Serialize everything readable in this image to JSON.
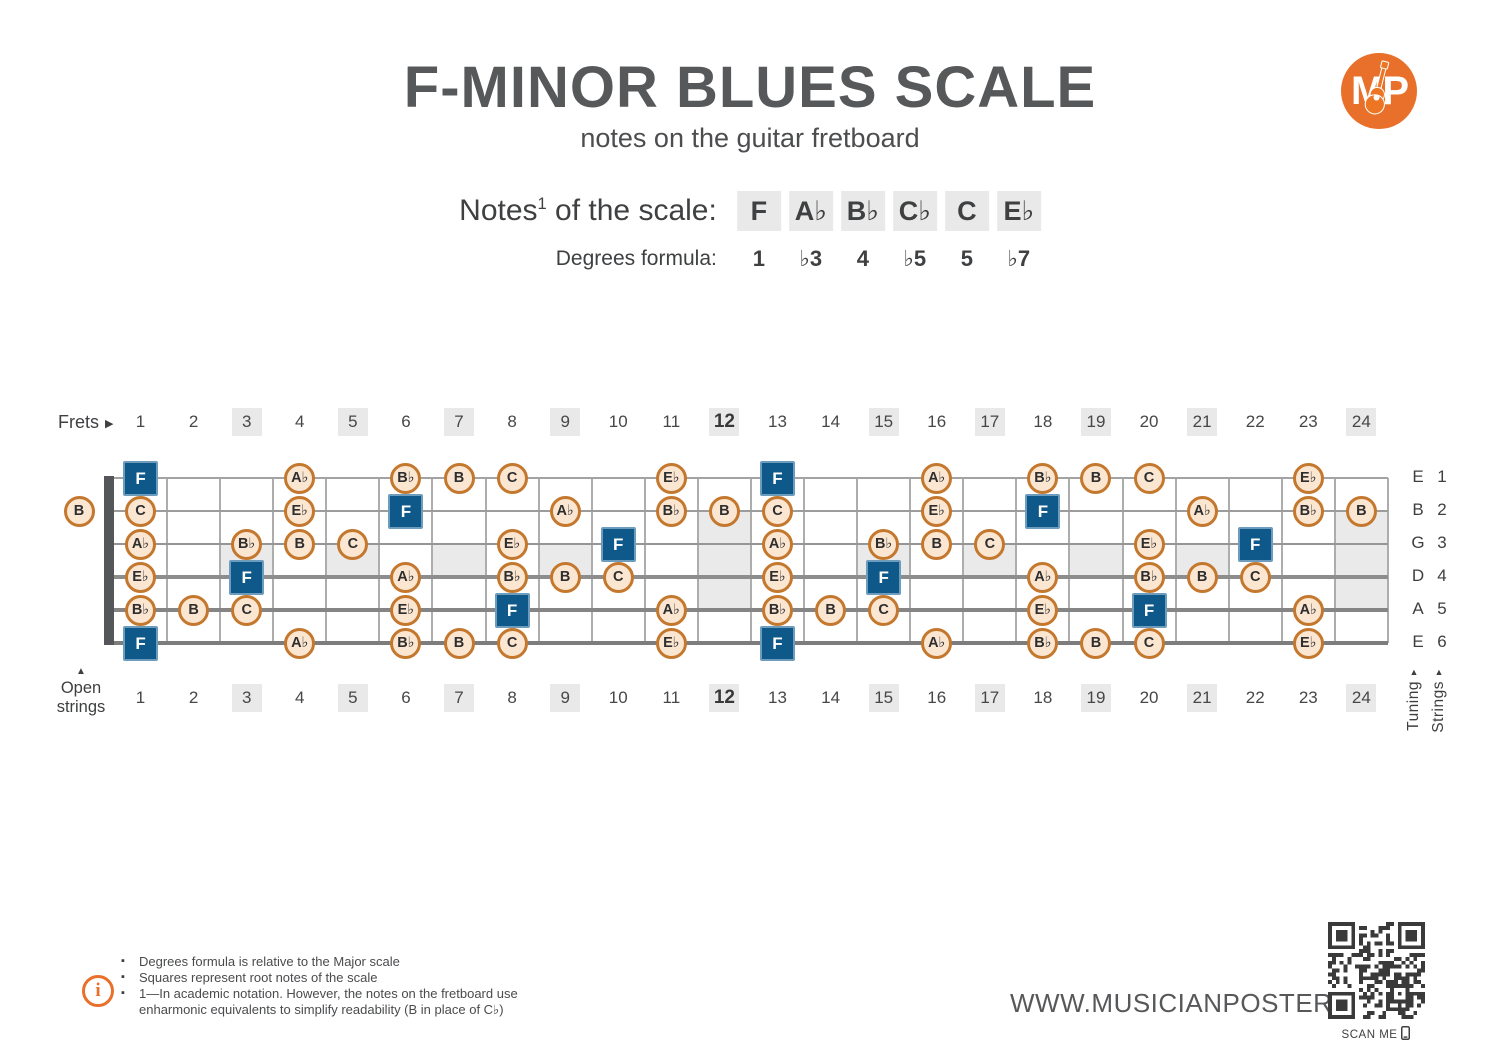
{
  "header": {
    "title": "F-MINOR BLUES SCALE",
    "subtitle": "notes on the guitar fretboard",
    "notes_label": "Notes",
    "notes_sup": "1",
    "notes_suffix": " of the scale:",
    "scale_notes": [
      "F",
      "A♭",
      "B♭",
      "C♭",
      "C",
      "E♭"
    ],
    "degrees_label": "Degrees formula:",
    "degrees": [
      "1",
      "♭3",
      "4",
      "♭5",
      "5",
      "♭7"
    ]
  },
  "logo": {
    "text": "MP"
  },
  "fretboard": {
    "frets_label": "Frets",
    "open_strings_label_line1": "Open",
    "open_strings_label_line2": "strings",
    "tuning_label": "Tuning",
    "strings_label": "Strings",
    "fret_count": 24,
    "bold_fret": 12,
    "highlighted_frets": [
      3,
      5,
      7,
      9,
      12,
      15,
      17,
      19,
      21,
      24
    ],
    "inlay_frets_single": [
      3,
      5,
      7,
      9,
      15,
      17,
      19,
      21
    ],
    "inlay_frets_double": [
      12,
      24
    ],
    "strings": [
      {
        "number": "1",
        "tuning": "E"
      },
      {
        "number": "2",
        "tuning": "B"
      },
      {
        "number": "3",
        "tuning": "G"
      },
      {
        "number": "4",
        "tuning": "D"
      },
      {
        "number": "5",
        "tuning": "A"
      },
      {
        "number": "6",
        "tuning": "E"
      }
    ],
    "open_notes": [
      {
        "s": 2,
        "n": "B"
      }
    ],
    "markers": [
      {
        "s": 1,
        "f": 1,
        "n": "F",
        "r": true
      },
      {
        "s": 1,
        "f": 4,
        "n": "A♭"
      },
      {
        "s": 1,
        "f": 6,
        "n": "B♭"
      },
      {
        "s": 1,
        "f": 7,
        "n": "B"
      },
      {
        "s": 1,
        "f": 8,
        "n": "C"
      },
      {
        "s": 1,
        "f": 11,
        "n": "E♭"
      },
      {
        "s": 1,
        "f": 13,
        "n": "F",
        "r": true
      },
      {
        "s": 1,
        "f": 16,
        "n": "A♭"
      },
      {
        "s": 1,
        "f": 18,
        "n": "B♭"
      },
      {
        "s": 1,
        "f": 19,
        "n": "B"
      },
      {
        "s": 1,
        "f": 20,
        "n": "C"
      },
      {
        "s": 1,
        "f": 23,
        "n": "E♭"
      },
      {
        "s": 2,
        "f": 1,
        "n": "C"
      },
      {
        "s": 2,
        "f": 4,
        "n": "E♭"
      },
      {
        "s": 2,
        "f": 6,
        "n": "F",
        "r": true
      },
      {
        "s": 2,
        "f": 9,
        "n": "A♭"
      },
      {
        "s": 2,
        "f": 11,
        "n": "B♭"
      },
      {
        "s": 2,
        "f": 12,
        "n": "B"
      },
      {
        "s": 2,
        "f": 13,
        "n": "C"
      },
      {
        "s": 2,
        "f": 16,
        "n": "E♭"
      },
      {
        "s": 2,
        "f": 18,
        "n": "F",
        "r": true
      },
      {
        "s": 2,
        "f": 21,
        "n": "A♭"
      },
      {
        "s": 2,
        "f": 23,
        "n": "B♭"
      },
      {
        "s": 2,
        "f": 24,
        "n": "B"
      },
      {
        "s": 3,
        "f": 1,
        "n": "A♭"
      },
      {
        "s": 3,
        "f": 3,
        "n": "B♭"
      },
      {
        "s": 3,
        "f": 4,
        "n": "B"
      },
      {
        "s": 3,
        "f": 5,
        "n": "C"
      },
      {
        "s": 3,
        "f": 8,
        "n": "E♭"
      },
      {
        "s": 3,
        "f": 10,
        "n": "F",
        "r": true
      },
      {
        "s": 3,
        "f": 13,
        "n": "A♭"
      },
      {
        "s": 3,
        "f": 15,
        "n": "B♭"
      },
      {
        "s": 3,
        "f": 16,
        "n": "B"
      },
      {
        "s": 3,
        "f": 17,
        "n": "C"
      },
      {
        "s": 3,
        "f": 20,
        "n": "E♭"
      },
      {
        "s": 3,
        "f": 22,
        "n": "F",
        "r": true
      },
      {
        "s": 4,
        "f": 1,
        "n": "E♭"
      },
      {
        "s": 4,
        "f": 3,
        "n": "F",
        "r": true
      },
      {
        "s": 4,
        "f": 6,
        "n": "A♭"
      },
      {
        "s": 4,
        "f": 8,
        "n": "B♭"
      },
      {
        "s": 4,
        "f": 9,
        "n": "B"
      },
      {
        "s": 4,
        "f": 10,
        "n": "C"
      },
      {
        "s": 4,
        "f": 13,
        "n": "E♭"
      },
      {
        "s": 4,
        "f": 15,
        "n": "F",
        "r": true
      },
      {
        "s": 4,
        "f": 18,
        "n": "A♭"
      },
      {
        "s": 4,
        "f": 20,
        "n": "B♭"
      },
      {
        "s": 4,
        "f": 21,
        "n": "B"
      },
      {
        "s": 4,
        "f": 22,
        "n": "C"
      },
      {
        "s": 5,
        "f": 1,
        "n": "B♭"
      },
      {
        "s": 5,
        "f": 2,
        "n": "B"
      },
      {
        "s": 5,
        "f": 3,
        "n": "C"
      },
      {
        "s": 5,
        "f": 6,
        "n": "E♭"
      },
      {
        "s": 5,
        "f": 8,
        "n": "F",
        "r": true
      },
      {
        "s": 5,
        "f": 11,
        "n": "A♭"
      },
      {
        "s": 5,
        "f": 13,
        "n": "B♭"
      },
      {
        "s": 5,
        "f": 14,
        "n": "B"
      },
      {
        "s": 5,
        "f": 15,
        "n": "C"
      },
      {
        "s": 5,
        "f": 18,
        "n": "E♭"
      },
      {
        "s": 5,
        "f": 20,
        "n": "F",
        "r": true
      },
      {
        "s": 5,
        "f": 23,
        "n": "A♭"
      },
      {
        "s": 6,
        "f": 1,
        "n": "F",
        "r": true
      },
      {
        "s": 6,
        "f": 4,
        "n": "A♭"
      },
      {
        "s": 6,
        "f": 6,
        "n": "B♭"
      },
      {
        "s": 6,
        "f": 7,
        "n": "B"
      },
      {
        "s": 6,
        "f": 8,
        "n": "C"
      },
      {
        "s": 6,
        "f": 11,
        "n": "E♭"
      },
      {
        "s": 6,
        "f": 13,
        "n": "F",
        "r": true
      },
      {
        "s": 6,
        "f": 16,
        "n": "A♭"
      },
      {
        "s": 6,
        "f": 18,
        "n": "B♭"
      },
      {
        "s": 6,
        "f": 19,
        "n": "B"
      },
      {
        "s": 6,
        "f": 20,
        "n": "C"
      },
      {
        "s": 6,
        "f": 23,
        "n": "E♭"
      }
    ]
  },
  "footer": {
    "info_icon": "i",
    "notes": [
      "Degrees formula is relative to the Major scale",
      "Squares represent root notes of the scale",
      "1—In academic notation. However, the notes on the fretboard use enharmonic equivalents to simplify readability (B in place of C♭)"
    ],
    "website": "WWW.MUSICIANPOSTER.COM",
    "scan_me": "SCAN ME"
  },
  "colors": {
    "accent_orange": "#e8702a",
    "marker_orange": "#c4782e",
    "marker_fill": "#fbe6d2",
    "root_blue": "#0e588a",
    "highlight_gray": "#e9e9e9",
    "title_gray": "#57585a"
  }
}
